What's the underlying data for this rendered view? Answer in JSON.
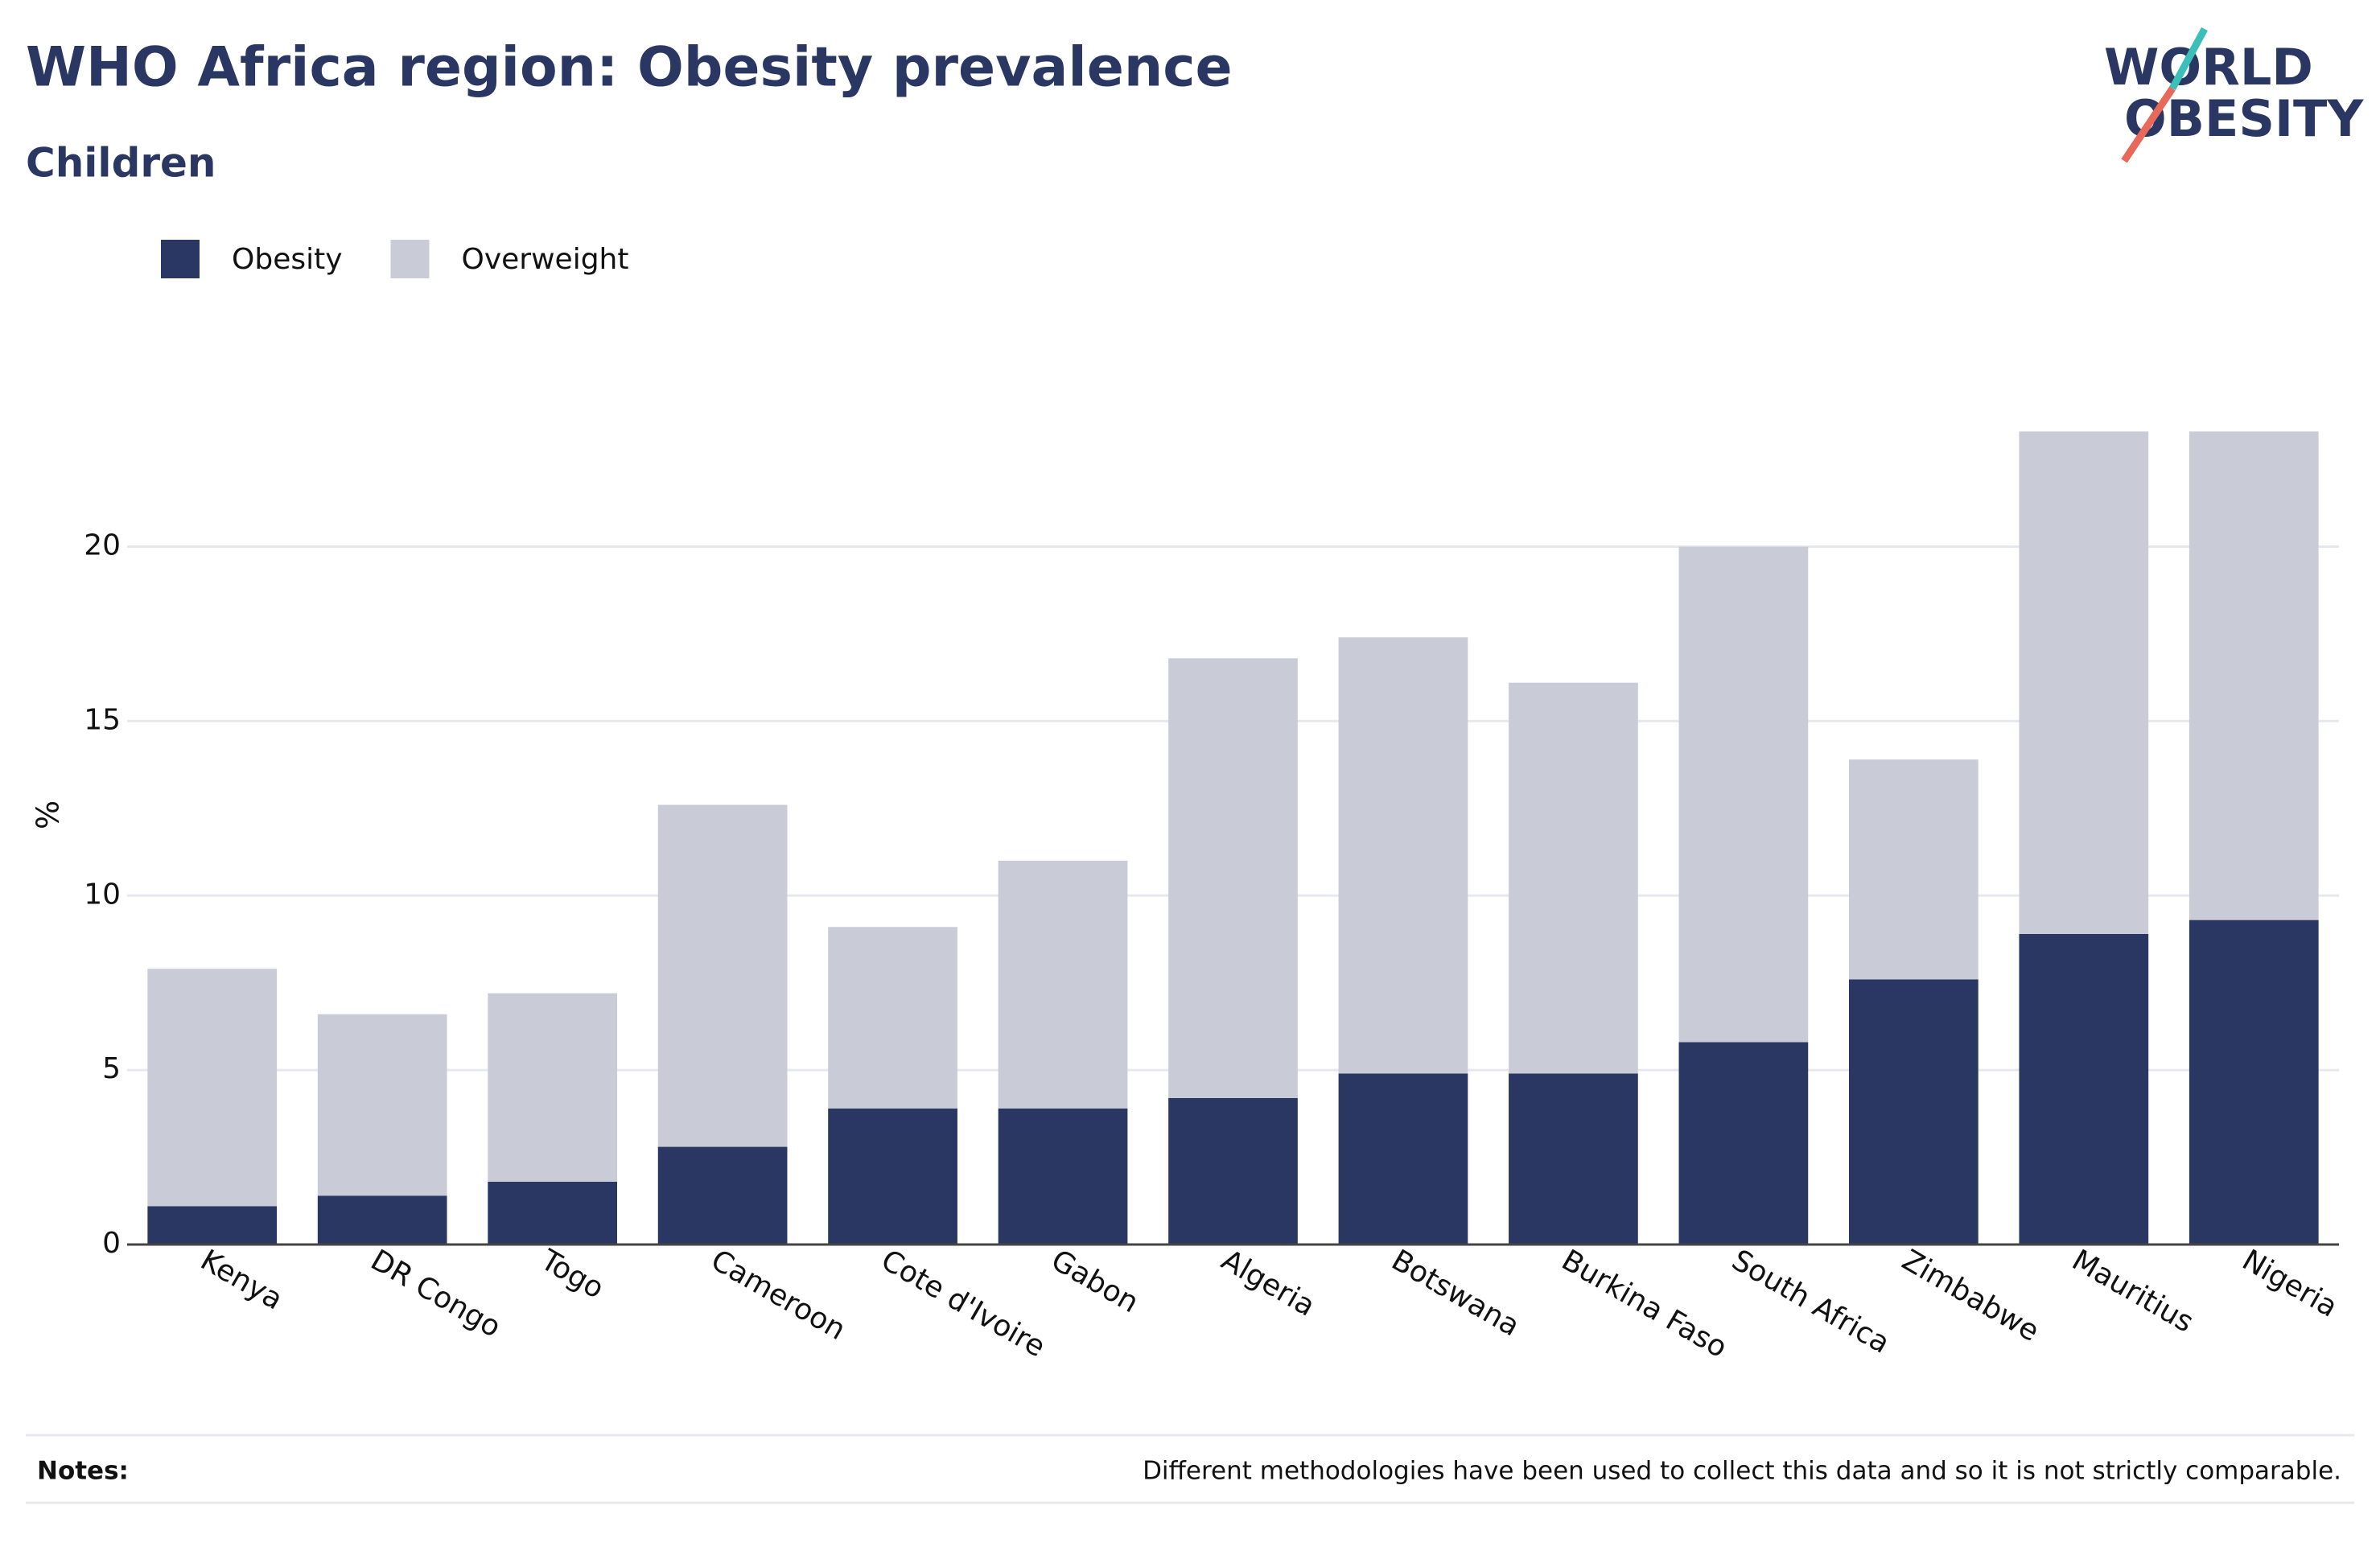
{
  "chart_data": {
    "type": "stacked_bar",
    "title": "WHO Africa region: Obesity prevalence",
    "subtitle": "Children",
    "logo": [
      "WORLD",
      "OBESITY"
    ],
    "y_label": "%",
    "categories": [
      "Kenya",
      "DR Congo",
      "Togo",
      "Cameroon",
      "Cote d'Ivoire",
      "Gabon",
      "Algeria",
      "Botswana",
      "Burkina Faso",
      "South Africa",
      "Zimbabwe",
      "Mauritius",
      "Nigeria"
    ],
    "series": [
      {
        "name": "Obesity",
        "color": "#2b3763",
        "values": [
          1.1,
          1.4,
          1.8,
          2.8,
          3.9,
          3.9,
          4.2,
          4.9,
          4.9,
          5.8,
          7.6,
          8.9,
          9.3
        ]
      },
      {
        "name": "Overweight",
        "color": "#c9cbd6",
        "values": [
          6.8,
          5.2,
          5.4,
          9.8,
          5.2,
          7.1,
          12.6,
          12.5,
          11.2,
          14.2,
          6.3,
          14.4,
          14.0
        ]
      }
    ],
    "ylim": [
      0,
      24
    ],
    "yticks": [
      0,
      5,
      10,
      15,
      20
    ],
    "grid": true,
    "legend": "top-left",
    "notes_label": "Notes:",
    "notes": "Different methodologies have been used to collect this data and so it is not strictly comparable."
  }
}
